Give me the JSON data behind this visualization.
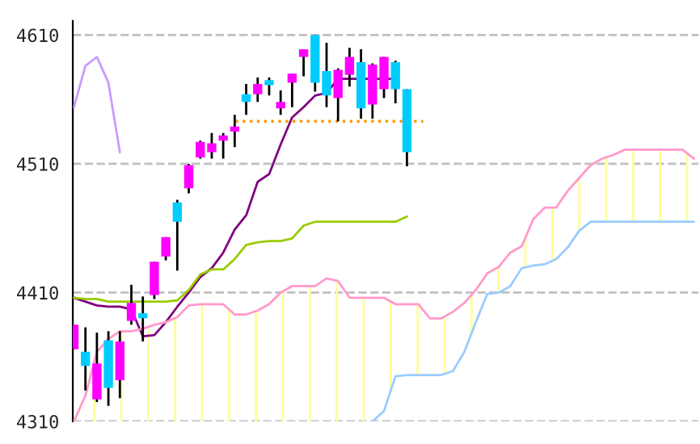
{
  "chart_data": {
    "type": "candlestick",
    "categories": [
      null,
      null,
      null,
      null,
      null,
      null,
      null,
      null,
      null,
      null,
      null,
      null,
      null,
      null,
      null,
      null,
      null,
      null,
      null,
      null,
      null,
      null,
      null,
      null,
      null,
      null,
      null,
      null,
      null,
      null,
      null,
      null,
      null,
      null,
      null,
      null,
      null,
      null,
      null,
      null,
      null,
      null,
      null,
      null,
      null,
      null,
      null,
      null,
      null,
      null,
      null,
      null,
      null,
      null,
      null
    ],
    "ohlc": [
      [
        4366,
        4385,
        4366,
        4385
      ],
      [
        4364,
        4383,
        4334,
        4353
      ],
      [
        4327,
        4379,
        4325,
        4355
      ],
      [
        4373,
        4380,
        4322,
        4336
      ],
      [
        4342,
        4380,
        4328,
        4372
      ],
      [
        4388,
        4416,
        4385,
        4402
      ],
      [
        4394,
        4407,
        4372,
        4390
      ],
      [
        4408,
        4434,
        4405,
        4434
      ],
      [
        4438,
        4453,
        4435,
        4453
      ],
      [
        4480,
        4482,
        4427,
        4465
      ],
      [
        4491,
        4510,
        4487,
        4509
      ],
      [
        4515,
        4528,
        4514,
        4527
      ],
      [
        4519,
        4534,
        4514,
        4526
      ],
      [
        4528,
        4534,
        4514,
        4532
      ],
      [
        4535,
        4548,
        4523,
        4539
      ],
      [
        4564,
        4572,
        4548,
        4558
      ],
      [
        4564,
        4577,
        4558,
        4572
      ],
      [
        4575,
        4577,
        4563,
        4571
      ],
      [
        4553,
        4567,
        4548,
        4558
      ],
      [
        4573,
        4580,
        4554,
        4580
      ],
      [
        4593,
        4599,
        4578,
        4599
      ],
      [
        4610,
        4610,
        4566,
        4573
      ],
      [
        4582,
        4604,
        4554,
        4563
      ],
      [
        4561,
        4584,
        4543,
        4583
      ],
      [
        4579,
        4600,
        4570,
        4593
      ],
      [
        4589,
        4599,
        4545,
        4553
      ],
      [
        4556,
        4588,
        4545,
        4587
      ],
      [
        4568,
        4593,
        4561,
        4593
      ],
      [
        4589,
        4590,
        4557,
        4568
      ],
      [
        4568,
        4568,
        4508,
        4519
      ],
      null,
      null,
      null,
      null,
      null,
      null,
      null,
      null,
      null,
      null,
      null,
      null,
      null,
      null,
      null,
      null,
      null,
      null,
      null,
      null,
      null,
      null,
      null,
      null,
      null
    ],
    "colors": [
      "#ff00ff",
      "#00ccff",
      "#ff00ff",
      "#00ccff",
      "#ff00ff",
      "#ff00ff",
      "#00ccff",
      "#ff00ff",
      "#ff00ff",
      "#00ccff",
      "#ff00ff",
      "#ff00ff",
      "#ff00ff",
      "#ff00ff",
      "#ff00ff",
      "#00ccff",
      "#ff00ff",
      "#00ccff",
      "#ff00ff",
      "#ff00ff",
      "#ff00ff",
      "#00ccff",
      "#00ccff",
      "#ff00ff",
      "#ff00ff",
      "#00ccff",
      "#ff00ff",
      "#ff00ff",
      "#00ccff",
      "#00ccff",
      null,
      null,
      null,
      null,
      null,
      null,
      null,
      null,
      null,
      null,
      null,
      null,
      null,
      null,
      null,
      null,
      null,
      null,
      null,
      null,
      null,
      null,
      null,
      null,
      null
    ],
    "series": [
      {
        "type": "line",
        "color": "#800080",
        "values": [
          4406,
          4403,
          4400,
          4399,
          4399,
          4397,
          4376,
          4377,
          4387,
          4399,
          4410,
          4422,
          4429,
          4441,
          4459,
          4470,
          4496,
          4502,
          4525,
          4546,
          4554,
          4563,
          4565,
          4576,
          4576,
          4576,
          4576,
          4576,
          4576,
          null,
          null,
          null,
          null,
          null,
          null,
          null,
          null,
          null,
          null,
          null,
          null,
          null,
          null,
          null,
          null,
          null,
          null,
          null,
          null,
          null,
          null,
          null,
          null,
          null,
          null
        ]
      },
      {
        "type": "line",
        "color": "#99cc00",
        "values": [
          4406,
          4405,
          4405,
          4403,
          4403,
          4403,
          4403,
          4403,
          4403,
          4404,
          4412,
          4424,
          4428,
          4428,
          4436,
          4447,
          4449,
          4450,
          4450,
          4452,
          4462,
          4465,
          4465,
          4465,
          4465,
          4465,
          4465,
          4465,
          4465,
          4469,
          null,
          null,
          null,
          null,
          null,
          null,
          null,
          null,
          null,
          null,
          null,
          null,
          null,
          null,
          null,
          null,
          null,
          null,
          null,
          null,
          null,
          null,
          null,
          null,
          null
        ]
      },
      {
        "type": "line",
        "color": "#cc99ff",
        "values": [
          4554,
          4586,
          4593,
          4573,
          4519,
          null,
          null,
          null,
          null,
          null,
          null,
          null,
          null,
          null,
          null,
          null,
          null,
          null,
          null,
          null,
          null,
          null,
          null,
          null,
          null,
          null,
          null,
          null,
          null,
          null,
          null,
          null,
          null,
          null,
          null,
          null,
          null,
          null,
          null,
          null,
          null,
          null,
          null,
          null,
          null,
          null,
          null,
          null,
          null,
          null,
          null,
          null,
          null,
          null,
          null
        ]
      },
      {
        "type": "line",
        "color": "#ff99cc",
        "values": [
          4310,
          4330,
          4364,
          4374,
          4380,
          4380,
          4382,
          4385,
          4387,
          4391,
          4400,
          4401,
          4401,
          4401,
          4393,
          4393,
          4396,
          4401,
          4410,
          4415,
          4415,
          4415,
          4421,
          4419,
          4406,
          4406,
          4406,
          4406,
          4401,
          4401,
          4401,
          4390,
          4390,
          4395,
          4402,
          4412,
          4425,
          4430,
          4441,
          4446,
          4467,
          4476,
          4476,
          4489,
          4499,
          4509,
          4514,
          4517,
          4521,
          4521,
          4521,
          4521,
          4521,
          4521,
          4514
        ],
        "upper": [
          4310,
          4330,
          4364,
          4374,
          4380,
          4380,
          4382,
          4385,
          4387,
          4391,
          4400,
          4401,
          4401,
          4401,
          4393,
          4393,
          4396,
          4401,
          4410,
          4415,
          4415,
          4415,
          4421,
          4419,
          4406,
          4406,
          4406,
          4406,
          4401,
          4401,
          4401,
          4390,
          4390,
          4395,
          4402,
          4412,
          4425,
          4430,
          4441,
          4446,
          4467,
          4476,
          4476,
          4489,
          4499,
          4509,
          4514,
          4517,
          4521,
          4521,
          4521,
          4521,
          4521,
          4521,
          4514
        ],
        "lower": [
          4310,
          4310,
          4310,
          4310,
          4310,
          4310,
          4310,
          4310,
          4310,
          4310,
          4310,
          4310,
          4310,
          4310,
          4310,
          4310,
          4310,
          4310,
          4310,
          4310,
          4310,
          4310,
          4310,
          4310,
          4310,
          4310,
          4310,
          4318,
          4345,
          4346,
          4346,
          4346,
          4346,
          4349,
          4364,
          4387,
          4409,
          4410,
          4415,
          4429,
          4431,
          4432,
          4436,
          4445,
          4458,
          4465,
          4465,
          4465,
          4465,
          4465,
          4465,
          4465,
          4465,
          4465,
          4465
        ]
      },
      {
        "type": "line",
        "color": "#99ccff",
        "values": [
          null,
          null,
          null,
          null,
          null,
          null,
          null,
          null,
          null,
          null,
          null,
          null,
          null,
          null,
          null,
          null,
          null,
          null,
          null,
          null,
          null,
          null,
          null,
          null,
          null,
          null,
          4310,
          4318,
          4345,
          4346,
          4346,
          4346,
          4346,
          4349,
          4364,
          4387,
          4409,
          4410,
          4415,
          4429,
          4431,
          4432,
          4436,
          4445,
          4458,
          4465,
          4465,
          4465,
          4465,
          4465,
          4465,
          4465,
          4465,
          4465,
          4465
        ]
      }
    ],
    "ref_lines": [
      {
        "axis": "y",
        "value": 4543,
        "color": "#ff9900",
        "line_style": "dotted"
      }
    ],
    "ylim": [
      4310,
      4621
    ],
    "yticks": [
      4310,
      4410,
      4510,
      4610
    ],
    "grid": "y",
    "tick_labels": "y",
    "legend": false
  }
}
